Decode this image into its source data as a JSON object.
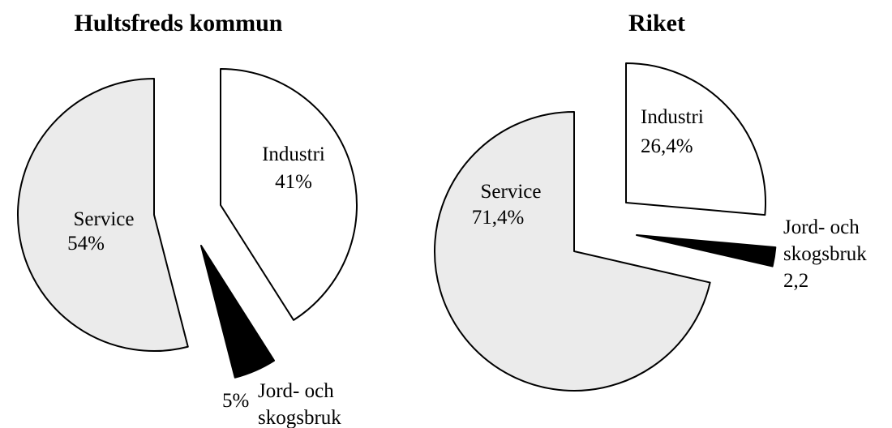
{
  "chart_data": [
    {
      "type": "pie",
      "title": "Hultsfreds kommun",
      "categories": [
        "Industri",
        "Jord- och skogsbruk",
        "Service"
      ],
      "values": [
        41,
        5,
        54
      ],
      "value_labels": [
        "41%",
        "5%",
        "54%"
      ],
      "colors": [
        "#ffffff",
        "#000000",
        "#ebebeb"
      ]
    },
    {
      "type": "pie",
      "title": "Riket",
      "categories": [
        "Industri",
        "Jord- och skogsbruk",
        "Service"
      ],
      "values": [
        26.4,
        2.2,
        71.4
      ],
      "value_labels": [
        "26,4%",
        "2,2",
        "71,4%"
      ],
      "colors": [
        "#ffffff",
        "#000000",
        "#ebebeb"
      ]
    }
  ]
}
